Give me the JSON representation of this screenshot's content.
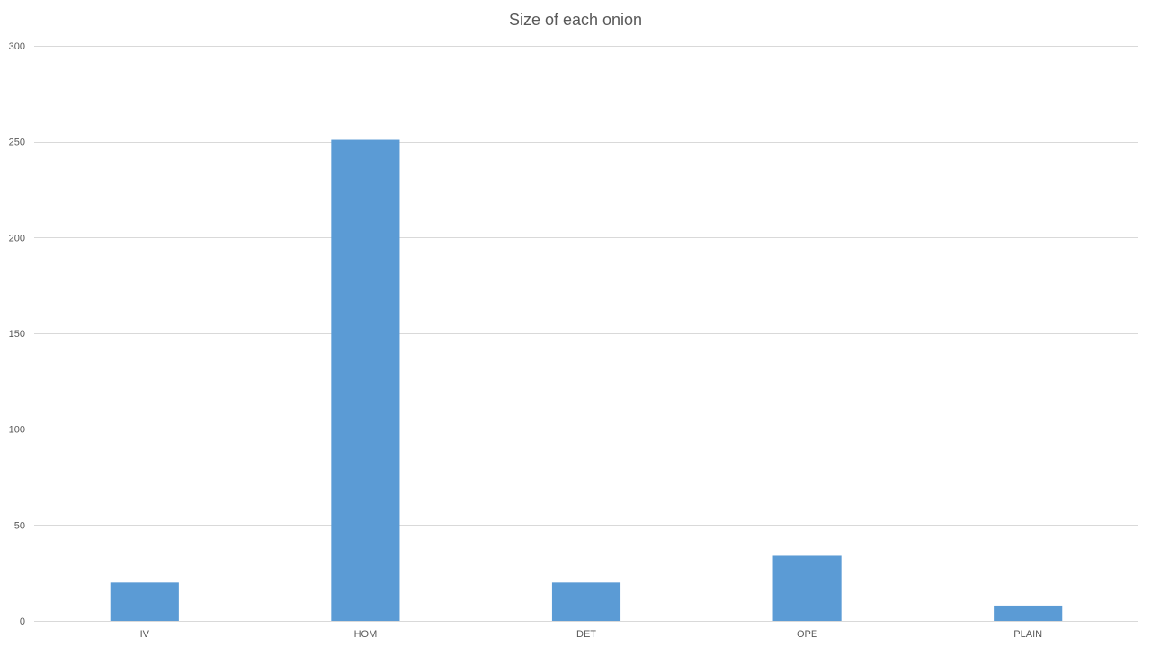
{
  "chart_data": {
    "type": "bar",
    "title": "Size of each onion",
    "xlabel": "",
    "ylabel": "",
    "categories": [
      "IV",
      "HOM",
      "DET",
      "OPE",
      "PLAIN"
    ],
    "values": [
      20,
      251,
      20,
      34,
      8
    ],
    "ylim": [
      0,
      300
    ],
    "yticks": [
      0,
      50,
      100,
      150,
      200,
      250,
      300
    ],
    "ytick_labels": [
      "0",
      "50",
      "100",
      "150",
      "200",
      "250",
      "300"
    ],
    "grid": true,
    "legend": "none",
    "bar_color": "#5b9bd5"
  }
}
